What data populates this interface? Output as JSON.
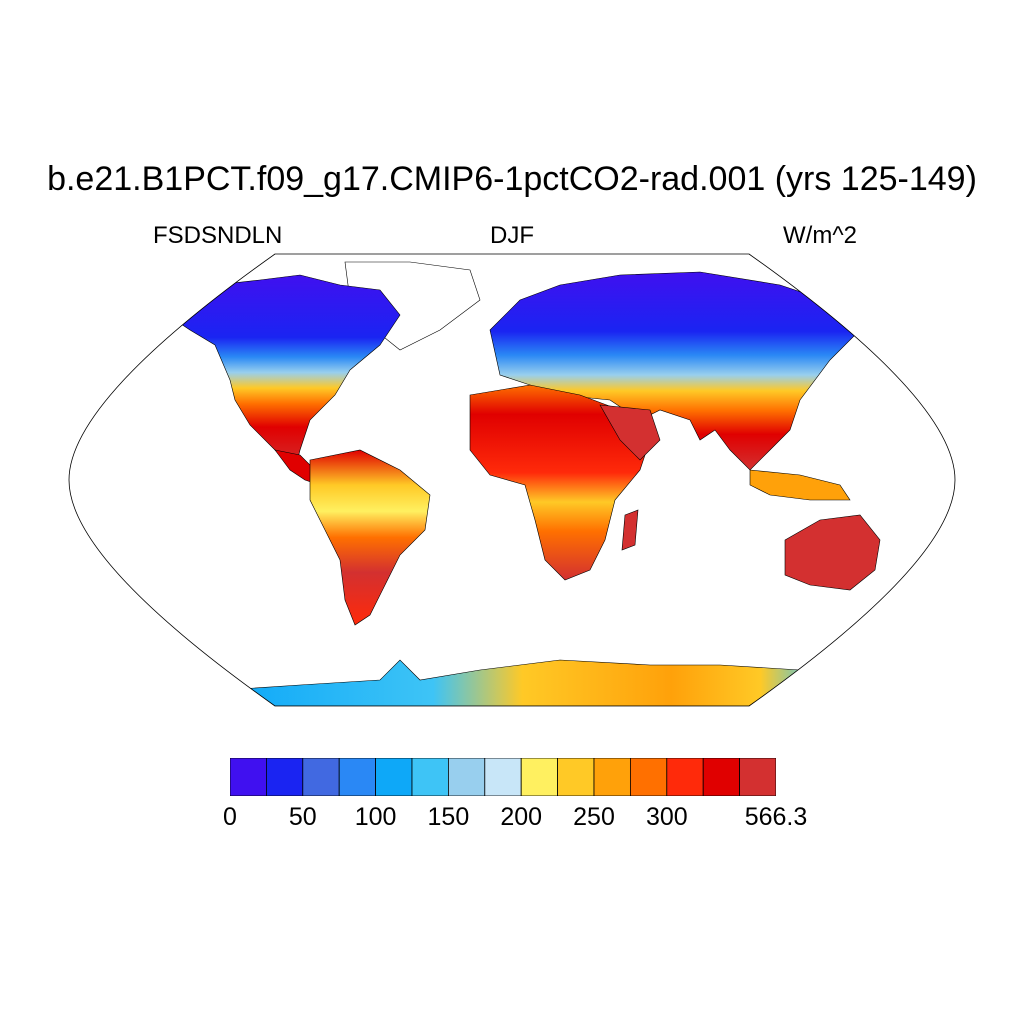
{
  "header": {
    "title": "b.e21.B1PCT.f09_g17.CMIP6-1pctCO2-rad.001 (yrs 125-149)",
    "left_label": "FSDSNDLN",
    "center_label": "DJF",
    "right_label": "W/m^2"
  },
  "map": {
    "projection": "robinson",
    "land_color": "#d33030",
    "ocean_color": "#ffffff"
  },
  "colorbar": {
    "colors": [
      "#4010f0",
      "#1a24f2",
      "#4169e1",
      "#2a88f5",
      "#0ea8f8",
      "#3ec4f6",
      "#98cfee",
      "#c8e6f8",
      "#fff060",
      "#ffc926",
      "#ffa10a",
      "#ff7000",
      "#ff2a0a",
      "#e00000",
      "#d33030"
    ],
    "labels": [
      "0",
      "50",
      "100",
      "150",
      "200",
      "250",
      "300",
      "566.3"
    ],
    "label_positions": [
      0,
      2,
      4,
      6,
      8,
      10,
      12,
      15
    ]
  }
}
